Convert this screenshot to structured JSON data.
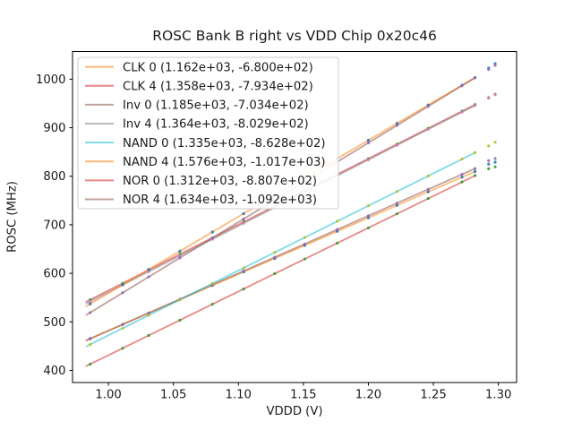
{
  "chart_data": {
    "type": "scatter",
    "title": "ROSC Bank B right vs VDD Chip 0x20c46",
    "xlabel": "VDDD (V)",
    "ylabel": "ROSC (MHz)",
    "xlim": [
      0.9724,
      1.314
    ],
    "ylim": [
      375,
      1057
    ],
    "xticks": [
      1.0,
      1.05,
      1.1,
      1.15,
      1.2,
      1.25,
      1.3
    ],
    "xtick_labels": [
      "1.00",
      "1.05",
      "1.10",
      "1.15",
      "1.20",
      "1.25",
      "1.30"
    ],
    "yticks": [
      400,
      500,
      600,
      700,
      800,
      900,
      1000
    ],
    "grid": false,
    "legend_position": "upper left",
    "fit_x_range": [
      0.983,
      1.2825
    ],
    "x_samples": [
      0.986,
      1.011,
      1.031,
      1.055,
      1.08,
      1.104,
      1.128,
      1.151,
      1.176,
      1.2,
      1.222,
      1.246,
      1.272,
      1.282
    ],
    "outlier_x": [
      1.2925,
      1.2975
    ],
    "series": [
      {
        "name": "CLK 0",
        "label": "CLK 0 (1.162e+03, -6.800e+02)",
        "slope": 1162,
        "intercept": -680.0,
        "line_color": "#ff7f0e",
        "dot_color": "#1f77b4",
        "y_samples": [
          465.7,
          494.8,
          518.0,
          545.9,
          575.0,
          602.9,
          630.7,
          657.5,
          686.5,
          714.4,
          740.0,
          767.9,
          798.1,
          809.7
        ],
        "outlier_y": [
          825.0,
          829.0
        ]
      },
      {
        "name": "CLK 4",
        "label": "CLK 4 (1.358e+03, -7.934e+02)",
        "slope": 1358,
        "intercept": -793.4,
        "line_color": "#d62728",
        "dot_color": "#2ca02c",
        "y_samples": [
          545.6,
          579.5,
          606.7,
          639.3,
          673.2,
          705.8,
          738.4,
          769.7,
          803.6,
          836.2,
          866.1,
          898.7,
          934.0,
          947.6
        ],
        "outlier_y": [
          962.0,
          969.0
        ]
      },
      {
        "name": "Inv 0",
        "label": "Inv 0 (1.185e+03, -7.034e+02)",
        "slope": 1185,
        "intercept": -703.4,
        "line_color": "#8c564b",
        "dot_color": "#9467bd",
        "y_samples": [
          465.0,
          494.6,
          518.3,
          546.8,
          576.4,
          604.8,
          633.3,
          660.5,
          690.2,
          718.6,
          744.7,
          773.1,
          803.9,
          815.8
        ],
        "outlier_y": [
          832.0,
          836.5
        ]
      },
      {
        "name": "Inv 4",
        "label": "Inv 4 (1.364e+03, -8.029e+02)",
        "slope": 1364,
        "intercept": -802.9,
        "line_color": "#7f7f7f",
        "dot_color": "#e377c2",
        "y_samples": [
          542.0,
          576.1,
          603.4,
          636.1,
          670.2,
          703.0,
          735.7,
          767.1,
          801.2,
          833.9,
          863.9,
          896.6,
          932.1,
          945.7
        ],
        "outlier_y": [
          961.0,
          968.0
        ]
      },
      {
        "name": "NAND 0",
        "label": "NAND 0 (1.335e+03, -8.628e+02)",
        "slope": 1335,
        "intercept": -862.8,
        "line_color": "#17becf",
        "dot_color": "#bcbd22",
        "y_samples": [
          453.5,
          486.9,
          513.6,
          545.6,
          579.0,
          611.0,
          643.1,
          673.8,
          707.2,
          739.2,
          768.5,
          800.6,
          835.3,
          848.7
        ],
        "outlier_y": [
          862.5,
          870.0
        ]
      },
      {
        "name": "NAND 4",
        "label": "NAND 4 (1.576e+03, -1.017e+03)",
        "slope": 1576,
        "intercept": -1017.0,
        "line_color": "#ff7f0e",
        "dot_color": "#1f77b4",
        "y_samples": [
          537.0,
          576.4,
          607.9,
          645.7,
          685.1,
          723.0,
          760.8,
          797.0,
          836.4,
          874.2,
          908.9,
          946.7,
          987.7,
          1003.4
        ],
        "outlier_y": [
          1023.0,
          1032.0
        ]
      },
      {
        "name": "NOR 0",
        "label": "NOR 0 (1.312e+03, -8.807e+02)",
        "slope": 1312,
        "intercept": -880.7,
        "line_color": "#d62728",
        "dot_color": "#2ca02c",
        "y_samples": [
          412.9,
          445.7,
          471.9,
          503.4,
          536.3,
          567.7,
          599.2,
          629.4,
          662.2,
          693.7,
          722.6,
          754.1,
          788.2,
          801.3
        ],
        "outlier_y": [
          815.5,
          819.5
        ]
      },
      {
        "name": "NOR 4",
        "label": "NOR 4 (1.634e+03, -1.092e+03)",
        "slope": 1634,
        "intercept": -1092.0,
        "line_color": "#8c564b",
        "dot_color": "#9467bd",
        "y_samples": [
          519.1,
          560.0,
          592.7,
          631.9,
          672.7,
          711.9,
          751.2,
          788.7,
          829.6,
          868.8,
          904.8,
          944.0,
          986.5,
          1002.8
        ],
        "outlier_y": [
          1020.0,
          1028.5
        ]
      }
    ],
    "style": {
      "spine_color": "#000000",
      "text_color": "#1a1a1a",
      "legend_border_color": "#cccccc",
      "line_opacity": 0.55,
      "dot_opacity": 0.9
    }
  }
}
